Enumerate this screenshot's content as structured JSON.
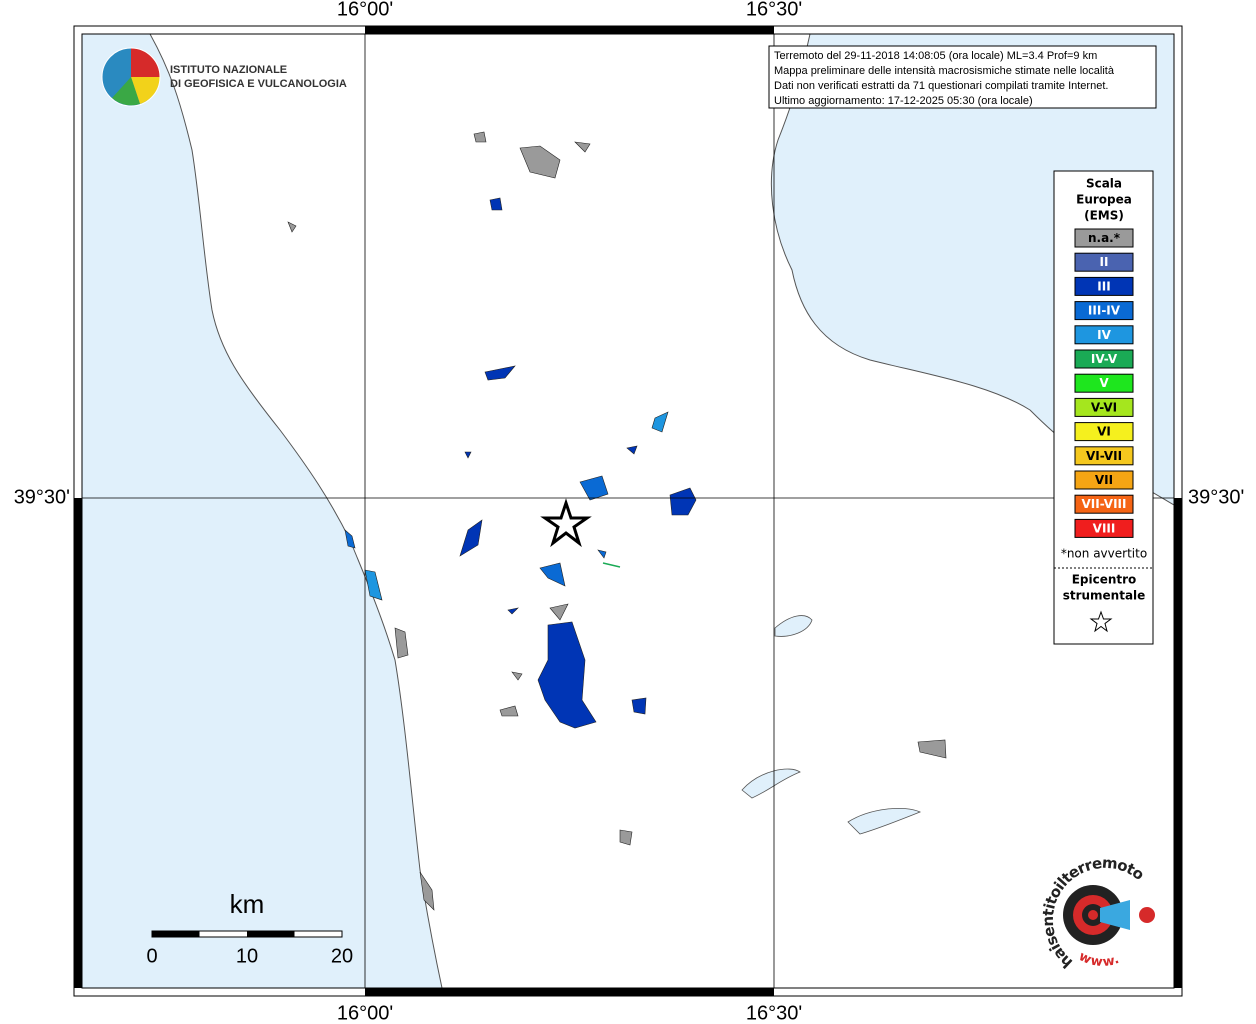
{
  "axes": {
    "top": [
      "16°00'",
      "16°30'"
    ],
    "bottom": [
      "16°00'",
      "16°30'"
    ],
    "left": "39°30'",
    "right": "39°30'"
  },
  "logo": {
    "line1": "ISTITUTO NAZIONALE",
    "line2": "DI GEOFISICA E VULCANOLOGIA"
  },
  "info": {
    "lines": [
      "Terremoto del 29-11-2018 14:08:05 (ora locale) ML=3.4 Prof=9 km",
      "Mappa preliminare delle intensità macrosismiche stimate nelle località",
      "Dati non verificati estratti da 71 questionari compilati tramite Internet.",
      "Ultimo aggiornamento: 17-12-2025 05:30 (ora locale)"
    ]
  },
  "legend": {
    "title": [
      "Scala",
      "Europea",
      "(EMS)"
    ],
    "items": [
      {
        "label": "n.a.*",
        "color": "#9a9a9a"
      },
      {
        "label": "II",
        "color": "#4a63b0"
      },
      {
        "label": "III",
        "color": "#0035b5"
      },
      {
        "label": "III-IV",
        "color": "#0a6ad4"
      },
      {
        "label": "IV",
        "color": "#1e96e0"
      },
      {
        "label": "IV-V",
        "color": "#1aaa55"
      },
      {
        "label": "V",
        "color": "#1ee61e"
      },
      {
        "label": "V-VI",
        "color": "#a5e61e"
      },
      {
        "label": "VI",
        "color": "#f5f01e"
      },
      {
        "label": "VI-VII",
        "color": "#f5c81e"
      },
      {
        "label": "VII",
        "color": "#f5a514"
      },
      {
        "label": "VII-VIII",
        "color": "#f56414"
      },
      {
        "label": "VIII",
        "color": "#f01e1e"
      }
    ],
    "note": "*non avvertito",
    "epicenter": [
      "Epicentro",
      "strumentale"
    ]
  },
  "scale": {
    "unit": "km",
    "labels": [
      0,
      10,
      20
    ]
  },
  "badge": {
    "text": "haisentitoilterremoto.it",
    "www": "www."
  }
}
